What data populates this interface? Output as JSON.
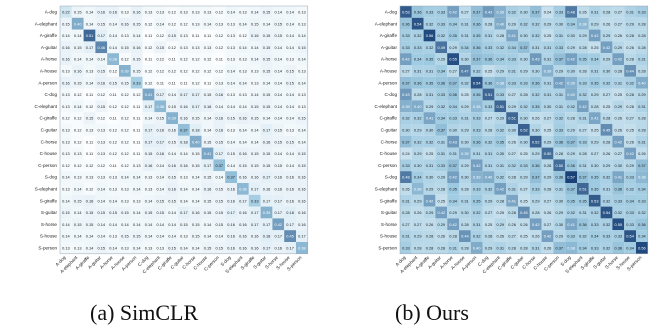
{
  "labels": [
    "A-dog",
    "A-elephant",
    "A-giraffe",
    "A-guitar",
    "A-horse",
    "A-house",
    "A-person",
    "C-dog",
    "C-elephant",
    "C-giraffe",
    "C-guitar",
    "C-horse",
    "C-house",
    "C-person",
    "S-dog",
    "S-elephant",
    "S-giraffe",
    "S-guitar",
    "S-horse",
    "S-house",
    "S-person"
  ],
  "colors": {
    "low": "#ffffff",
    "high": "#08306b"
  },
  "captions": {
    "left": "(a) SimCLR",
    "right": "(b) Ours"
  },
  "chart_data": [
    {
      "type": "heatmap",
      "title": "",
      "caption": "(a) SimCLR",
      "rows": [
        "A-dog",
        "A-elephant",
        "A-giraffe",
        "A-guitar",
        "A-horse",
        "A-house",
        "A-person",
        "C-dog",
        "C-elephant",
        "C-giraffe",
        "C-guitar",
        "C-horse",
        "C-house",
        "C-person",
        "S-dog",
        "S-elephant",
        "S-giraffe",
        "S-guitar",
        "S-horse",
        "S-house",
        "S-person"
      ],
      "cols": [
        "A-dog",
        "A-elephant",
        "A-giraffe",
        "A-guitar",
        "A-horse",
        "A-house",
        "A-person",
        "C-dog",
        "C-elephant",
        "C-giraffe",
        "C-guitar",
        "C-horse",
        "C-house",
        "C-person",
        "S-dog",
        "S-elephant",
        "S-giraffe",
        "S-guitar",
        "S-horse",
        "S-house",
        "S-person"
      ],
      "values": [
        [
          0.22,
          0.15,
          0.14,
          0.16,
          0.16,
          0.13,
          0.16,
          0.13,
          0.13,
          0.12,
          0.13,
          0.13,
          0.13,
          0.12,
          0.14,
          0.13,
          0.14,
          0.15,
          0.14,
          0.14,
          0.13
        ],
        [
          0.15,
          0.4,
          0.14,
          0.15,
          0.14,
          0.16,
          0.15,
          0.12,
          0.14,
          0.12,
          0.12,
          0.13,
          0.14,
          0.13,
          0.13,
          0.14,
          0.15,
          0.14,
          0.15,
          0.14,
          0.13
        ],
        [
          0.14,
          0.14,
          0.51,
          0.17,
          0.14,
          0.13,
          0.14,
          0.11,
          0.12,
          0.15,
          0.13,
          0.11,
          0.11,
          0.12,
          0.13,
          0.12,
          0.16,
          0.15,
          0.15,
          0.14,
          0.14
        ],
        [
          0.16,
          0.15,
          0.17,
          0.46,
          0.14,
          0.15,
          0.16,
          0.12,
          0.15,
          0.12,
          0.13,
          0.13,
          0.13,
          0.12,
          0.13,
          0.14,
          0.14,
          0.15,
          0.14,
          0.14,
          0.15
        ],
        [
          0.16,
          0.14,
          0.14,
          0.14,
          0.38,
          0.12,
          0.15,
          0.11,
          0.12,
          0.11,
          0.12,
          0.12,
          0.12,
          0.11,
          0.13,
          0.13,
          0.14,
          0.15,
          0.14,
          0.13,
          0.14
        ],
        [
          0.13,
          0.16,
          0.13,
          0.15,
          0.12,
          0.39,
          0.15,
          0.12,
          0.12,
          0.12,
          0.12,
          0.12,
          0.12,
          0.12,
          0.14,
          0.13,
          0.13,
          0.15,
          0.14,
          0.15,
          0.13
        ],
        [
          0.16,
          0.15,
          0.14,
          0.16,
          0.15,
          0.15,
          0.33,
          0.12,
          0.11,
          0.11,
          0.11,
          0.12,
          0.11,
          0.13,
          0.14,
          0.14,
          0.13,
          0.14,
          0.14,
          0.15,
          0.14
        ],
        [
          0.13,
          0.12,
          0.11,
          0.12,
          0.11,
          0.12,
          0.12,
          0.41,
          0.17,
          0.14,
          0.17,
          0.17,
          0.15,
          0.16,
          0.13,
          0.13,
          0.14,
          0.15,
          0.14,
          0.14,
          0.13
        ],
        [
          0.13,
          0.14,
          0.12,
          0.15,
          0.12,
          0.12,
          0.11,
          0.17,
          0.38,
          0.15,
          0.16,
          0.17,
          0.16,
          0.14,
          0.14,
          0.14,
          0.15,
          0.15,
          0.14,
          0.14,
          0.13
        ],
        [
          0.12,
          0.12,
          0.15,
          0.12,
          0.11,
          0.12,
          0.11,
          0.14,
          0.15,
          0.39,
          0.16,
          0.15,
          0.14,
          0.16,
          0.15,
          0.16,
          0.15,
          0.14,
          0.14,
          0.14,
          0.15
        ],
        [
          0.13,
          0.12,
          0.13,
          0.13,
          0.12,
          0.12,
          0.11,
          0.17,
          0.16,
          0.16,
          0.37,
          0.18,
          0.14,
          0.16,
          0.13,
          0.14,
          0.14,
          0.17,
          0.15,
          0.13,
          0.14
        ],
        [
          0.13,
          0.12,
          0.11,
          0.13,
          0.12,
          0.12,
          0.11,
          0.17,
          0.17,
          0.15,
          0.18,
          0.4,
          0.15,
          0.15,
          0.14,
          0.14,
          0.14,
          0.16,
          0.15,
          0.15,
          0.14
        ],
        [
          0.13,
          0.13,
          0.11,
          0.13,
          0.12,
          0.12,
          0.11,
          0.15,
          0.16,
          0.14,
          0.14,
          0.15,
          0.41,
          0.17,
          0.15,
          0.16,
          0.15,
          0.15,
          0.14,
          0.14,
          0.15
        ],
        [
          0.12,
          0.12,
          0.12,
          0.12,
          0.11,
          0.12,
          0.13,
          0.16,
          0.14,
          0.16,
          0.16,
          0.15,
          0.17,
          0.37,
          0.14,
          0.15,
          0.15,
          0.15,
          0.15,
          0.14,
          0.15
        ],
        [
          0.14,
          0.13,
          0.13,
          0.13,
          0.13,
          0.14,
          0.14,
          0.13,
          0.14,
          0.15,
          0.13,
          0.14,
          0.15,
          0.14,
          0.37,
          0.16,
          0.16,
          0.17,
          0.16,
          0.16,
          0.16
        ],
        [
          0.13,
          0.14,
          0.12,
          0.14,
          0.13,
          0.13,
          0.14,
          0.13,
          0.14,
          0.16,
          0.14,
          0.14,
          0.16,
          0.15,
          0.16,
          0.38,
          0.17,
          0.16,
          0.16,
          0.16,
          0.16
        ],
        [
          0.14,
          0.15,
          0.16,
          0.14,
          0.14,
          0.13,
          0.13,
          0.14,
          0.15,
          0.15,
          0.14,
          0.14,
          0.15,
          0.15,
          0.16,
          0.17,
          0.33,
          0.17,
          0.17,
          0.16,
          0.16
        ],
        [
          0.15,
          0.14,
          0.15,
          0.15,
          0.15,
          0.15,
          0.14,
          0.15,
          0.15,
          0.14,
          0.17,
          0.16,
          0.15,
          0.15,
          0.17,
          0.16,
          0.17,
          0.39,
          0.17,
          0.18,
          0.16
        ],
        [
          0.14,
          0.15,
          0.15,
          0.14,
          0.14,
          0.14,
          0.14,
          0.14,
          0.14,
          0.14,
          0.15,
          0.15,
          0.14,
          0.15,
          0.16,
          0.16,
          0.17,
          0.17,
          0.42,
          0.17,
          0.16
        ],
        [
          0.14,
          0.14,
          0.14,
          0.14,
          0.13,
          0.15,
          0.15,
          0.14,
          0.14,
          0.14,
          0.13,
          0.15,
          0.14,
          0.14,
          0.16,
          0.16,
          0.16,
          0.18,
          0.17,
          0.45,
          0.17
        ],
        [
          0.13,
          0.13,
          0.14,
          0.15,
          0.14,
          0.13,
          0.14,
          0.13,
          0.13,
          0.15,
          0.14,
          0.14,
          0.15,
          0.15,
          0.16,
          0.16,
          0.16,
          0.17,
          0.16,
          0.17,
          0.38
        ]
      ]
    },
    {
      "type": "heatmap",
      "title": "",
      "caption": "(b) Ours",
      "rows": [
        "A-dog",
        "A-elephant",
        "A-giraffe",
        "A-guitar",
        "A-horse",
        "A-house",
        "A-person",
        "C-dog",
        "C-elephant",
        "C-giraffe",
        "C-guitar",
        "C-horse",
        "C-house",
        "C-person",
        "S-dog",
        "S-elephant",
        "S-giraffe",
        "S-guitar",
        "S-horse",
        "S-house",
        "S-person"
      ],
      "cols": [
        "A-dog",
        "A-elephant",
        "A-giraffe",
        "A-guitar",
        "A-horse",
        "A-house",
        "A-person",
        "C-dog",
        "C-elephant",
        "C-giraffe",
        "C-guitar",
        "C-horse",
        "C-house",
        "C-person",
        "S-dog",
        "S-elephant",
        "S-giraffe",
        "S-guitar",
        "S-horse",
        "S-house",
        "S-person"
      ],
      "values": [
        [
          0.53,
          0.36,
          0.33,
          0.33,
          0.42,
          0.27,
          0.37,
          0.43,
          0.39,
          0.32,
          0.3,
          0.37,
          0.24,
          0.33,
          0.48,
          0.26,
          0.31,
          0.28,
          0.27,
          0.31,
          0.33
        ],
        [
          0.36,
          0.54,
          0.32,
          0.33,
          0.34,
          0.31,
          0.36,
          0.28,
          0.4,
          0.29,
          0.32,
          0.32,
          0.29,
          0.3,
          0.34,
          0.38,
          0.29,
          0.26,
          0.27,
          0.29,
          0.28
        ],
        [
          0.33,
          0.32,
          0.56,
          0.32,
          0.35,
          0.31,
          0.35,
          0.31,
          0.28,
          0.41,
          0.3,
          0.32,
          0.25,
          0.31,
          0.3,
          0.29,
          0.42,
          0.29,
          0.26,
          0.28,
          0.28
        ],
        [
          0.33,
          0.33,
          0.32,
          0.49,
          0.29,
          0.34,
          0.36,
          0.33,
          0.32,
          0.34,
          0.37,
          0.31,
          0.31,
          0.33,
          0.29,
          0.28,
          0.25,
          0.42,
          0.29,
          0.26,
          0.28
        ],
        [
          0.42,
          0.34,
          0.35,
          0.29,
          0.55,
          0.3,
          0.37,
          0.36,
          0.34,
          0.33,
          0.3,
          0.43,
          0.31,
          0.37,
          0.42,
          0.35,
          0.34,
          0.29,
          0.42,
          0.28,
          0.31
        ],
        [
          0.27,
          0.31,
          0.31,
          0.34,
          0.27,
          0.47,
          0.32,
          0.25,
          0.29,
          0.31,
          0.29,
          0.3,
          0.39,
          0.29,
          0.3,
          0.28,
          0.31,
          0.3,
          0.28,
          0.44,
          0.28
        ],
        [
          0.37,
          0.36,
          0.35,
          0.36,
          0.37,
          0.32,
          0.54,
          0.36,
          0.38,
          0.33,
          0.33,
          0.36,
          0.31,
          0.42,
          0.39,
          0.33,
          0.35,
          0.32,
          0.31,
          0.32,
          0.4
        ],
        [
          0.43,
          0.28,
          0.31,
          0.33,
          0.36,
          0.25,
          0.36,
          0.51,
          0.33,
          0.27,
          0.28,
          0.32,
          0.31,
          0.31,
          0.4,
          0.32,
          0.29,
          0.27,
          0.25,
          0.28,
          0.29
        ],
        [
          0.39,
          0.4,
          0.29,
          0.32,
          0.34,
          0.29,
          0.38,
          0.33,
          0.51,
          0.29,
          0.32,
          0.35,
          0.3,
          0.31,
          0.32,
          0.42,
          0.28,
          0.25,
          0.29,
          0.26,
          0.31
        ],
        [
          0.32,
          0.32,
          0.41,
          0.34,
          0.33,
          0.31,
          0.33,
          0.27,
          0.29,
          0.51,
          0.3,
          0.26,
          0.27,
          0.32,
          0.28,
          0.31,
          0.41,
          0.28,
          0.26,
          0.27,
          0.28
        ],
        [
          0.3,
          0.29,
          0.3,
          0.37,
          0.3,
          0.29,
          0.33,
          0.28,
          0.32,
          0.3,
          0.52,
          0.3,
          0.25,
          0.33,
          0.29,
          0.27,
          0.25,
          0.45,
          0.26,
          0.25,
          0.28
        ],
        [
          0.37,
          0.32,
          0.32,
          0.31,
          0.43,
          0.3,
          0.36,
          0.32,
          0.35,
          0.26,
          0.3,
          0.52,
          0.29,
          0.36,
          0.37,
          0.33,
          0.29,
          0.28,
          0.42,
          0.26,
          0.31
        ],
        [
          0.24,
          0.29,
          0.25,
          0.31,
          0.31,
          0.39,
          0.31,
          0.31,
          0.3,
          0.27,
          0.25,
          0.29,
          0.5,
          0.28,
          0.29,
          0.28,
          0.27,
          0.26,
          0.27,
          0.42,
          0.26
        ],
        [
          0.33,
          0.3,
          0.31,
          0.33,
          0.37,
          0.29,
          0.42,
          0.31,
          0.31,
          0.32,
          0.33,
          0.36,
          0.28,
          0.5,
          0.36,
          0.31,
          0.3,
          0.29,
          0.3,
          0.29,
          0.37
        ],
        [
          0.48,
          0.34,
          0.3,
          0.29,
          0.42,
          0.3,
          0.39,
          0.4,
          0.32,
          0.28,
          0.29,
          0.37,
          0.29,
          0.36,
          0.57,
          0.37,
          0.35,
          0.32,
          0.41,
          0.33,
          0.38
        ],
        [
          0.26,
          0.38,
          0.29,
          0.28,
          0.35,
          0.28,
          0.33,
          0.32,
          0.42,
          0.31,
          0.27,
          0.33,
          0.28,
          0.31,
          0.37,
          0.51,
          0.35,
          0.31,
          0.36,
          0.32,
          0.34
        ],
        [
          0.31,
          0.29,
          0.42,
          0.25,
          0.34,
          0.31,
          0.35,
          0.29,
          0.28,
          0.41,
          0.25,
          0.29,
          0.27,
          0.3,
          0.35,
          0.35,
          0.53,
          0.32,
          0.33,
          0.34,
          0.33
        ],
        [
          0.28,
          0.26,
          0.29,
          0.42,
          0.29,
          0.3,
          0.32,
          0.27,
          0.25,
          0.28,
          0.45,
          0.28,
          0.26,
          0.29,
          0.32,
          0.31,
          0.32,
          0.54,
          0.32,
          0.33,
          0.32
        ],
        [
          0.27,
          0.27,
          0.26,
          0.29,
          0.42,
          0.28,
          0.31,
          0.25,
          0.29,
          0.26,
          0.26,
          0.42,
          0.27,
          0.3,
          0.41,
          0.36,
          0.33,
          0.32,
          0.55,
          0.33,
          0.36
        ],
        [
          0.31,
          0.29,
          0.28,
          0.26,
          0.28,
          0.44,
          0.32,
          0.28,
          0.26,
          0.27,
          0.25,
          0.26,
          0.42,
          0.29,
          0.33,
          0.32,
          0.34,
          0.33,
          0.33,
          0.54,
          0.34
        ],
        [
          0.33,
          0.28,
          0.28,
          0.28,
          0.31,
          0.28,
          0.4,
          0.29,
          0.31,
          0.28,
          0.28,
          0.31,
          0.26,
          0.37,
          0.38,
          0.34,
          0.33,
          0.32,
          0.36,
          0.34,
          0.56
        ]
      ]
    }
  ]
}
